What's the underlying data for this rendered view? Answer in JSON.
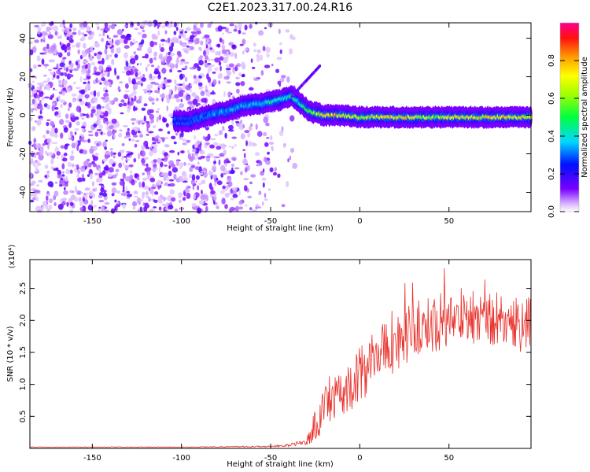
{
  "title": "C2E1.2023.317.00.24.R16",
  "chart_data": [
    {
      "type": "heatmap",
      "title": "C2E1.2023.317.00.24.R16",
      "xlabel": "Height of straight line (km)",
      "ylabel": "Frequency (Hz)",
      "xlim": [
        -185,
        96
      ],
      "ylim": [
        -50,
        48
      ],
      "xticks": [
        -150,
        -100,
        -50,
        0,
        50
      ],
      "yticks": [
        -40,
        -20,
        0,
        20,
        40
      ],
      "colorbar": {
        "label": "Normalized spectral amplitude",
        "range": [
          0,
          1
        ],
        "ticks": [
          "0.0",
          "0.2",
          "0.4",
          "0.6",
          "0.8"
        ],
        "colormap": "rainbow (white/purple low to red/magenta high)"
      },
      "ridge": {
        "x": [
          -104,
          -95,
          -85,
          -75,
          -65,
          -55,
          -45,
          -38,
          -33,
          -28,
          -20,
          -10,
          0,
          20,
          40,
          60,
          80,
          95
        ],
        "y": [
          -3,
          -3,
          0,
          2,
          5,
          6,
          8,
          10,
          6,
          2,
          0,
          0,
          -1,
          -1,
          -1,
          -1,
          -1,
          -1
        ],
        "peak_amplitude": [
          0.25,
          0.3,
          0.35,
          0.4,
          0.4,
          0.42,
          0.5,
          0.55,
          0.5,
          0.65,
          0.85,
          0.85,
          0.75,
          0.85,
          0.7,
          0.8,
          0.85,
          0.75
        ]
      },
      "grid": false,
      "legend": "colorbar-right"
    },
    {
      "type": "line",
      "xlabel": "Height of straight line (km)",
      "ylabel": "SNR (10 * v/v)",
      "yscale_label": "(x10⁴)",
      "xlim": [
        -185,
        96
      ],
      "ylim": [
        0,
        2.95
      ],
      "xticks": [
        -150,
        -100,
        -50,
        0,
        50
      ],
      "yticks": [
        "0.5",
        "1.0",
        "1.5",
        "2.0",
        "2.5"
      ],
      "color": "#e8302a",
      "series": [
        {
          "x": [
            -185,
            -100,
            -50,
            -40,
            -30,
            -25,
            -20,
            -15,
            -10,
            -5,
            0,
            5,
            10,
            15,
            20,
            25,
            30,
            40,
            50,
            60,
            70,
            80,
            90,
            96
          ],
          "y_mean": [
            0.02,
            0.02,
            0.03,
            0.05,
            0.1,
            0.35,
            0.6,
            0.75,
            0.85,
            1.0,
            1.15,
            1.3,
            1.45,
            1.55,
            1.65,
            1.75,
            1.85,
            1.95,
            2.0,
            2.05,
            2.05,
            2.0,
            1.95,
            1.95
          ],
          "y_noise": [
            0.005,
            0.005,
            0.01,
            0.02,
            0.05,
            0.3,
            0.35,
            0.35,
            0.35,
            0.4,
            0.45,
            0.45,
            0.45,
            0.45,
            0.45,
            0.45,
            0.45,
            0.45,
            0.45,
            0.45,
            0.45,
            0.45,
            0.45,
            0.45
          ]
        }
      ],
      "grid": false
    }
  ]
}
